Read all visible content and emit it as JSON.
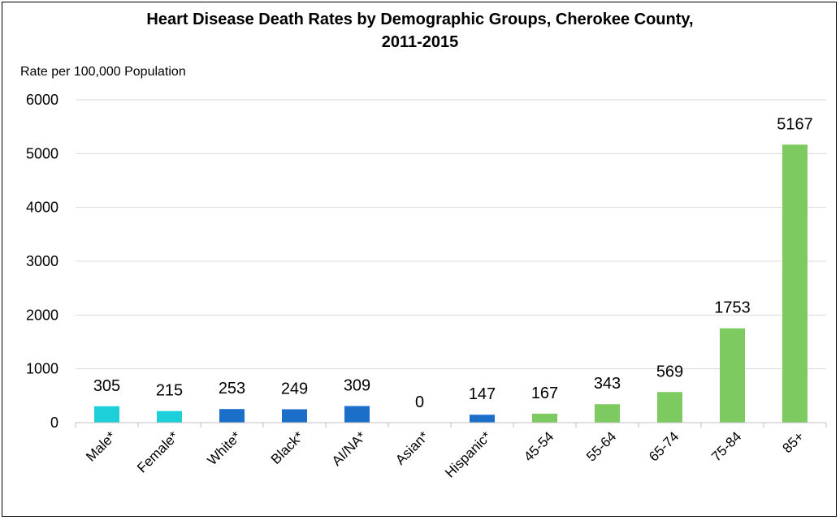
{
  "chart_data": {
    "type": "bar",
    "title_line1": "Heart Disease Death Rates by Demographic Groups, Cherokee County,",
    "title_line2": "2011-2015",
    "ylabel": "Rate per 100,000 Population",
    "xlabel": "",
    "ylim": [
      0,
      6000
    ],
    "yticks": [
      0,
      1000,
      2000,
      3000,
      4000,
      5000,
      6000
    ],
    "grid": true,
    "legend": "none",
    "categories": [
      "Male*",
      "Female*",
      "White*",
      "Black*",
      "AI/NA*",
      "Asian*",
      "Hispanic*",
      "45-54",
      "55-64",
      "65-74",
      "75-84",
      "85+"
    ],
    "values": [
      305,
      215,
      253,
      249,
      309,
      0,
      147,
      167,
      343,
      569,
      1753,
      5167
    ],
    "bar_colors": [
      "#1CCFD9",
      "#1CCFD9",
      "#1B6FC9",
      "#1B6FC9",
      "#1B6FC9",
      "#1B6FC9",
      "#1B6FC9",
      "#7DCA61",
      "#7DCA61",
      "#7DCA61",
      "#7DCA61",
      "#7DCA61"
    ]
  }
}
